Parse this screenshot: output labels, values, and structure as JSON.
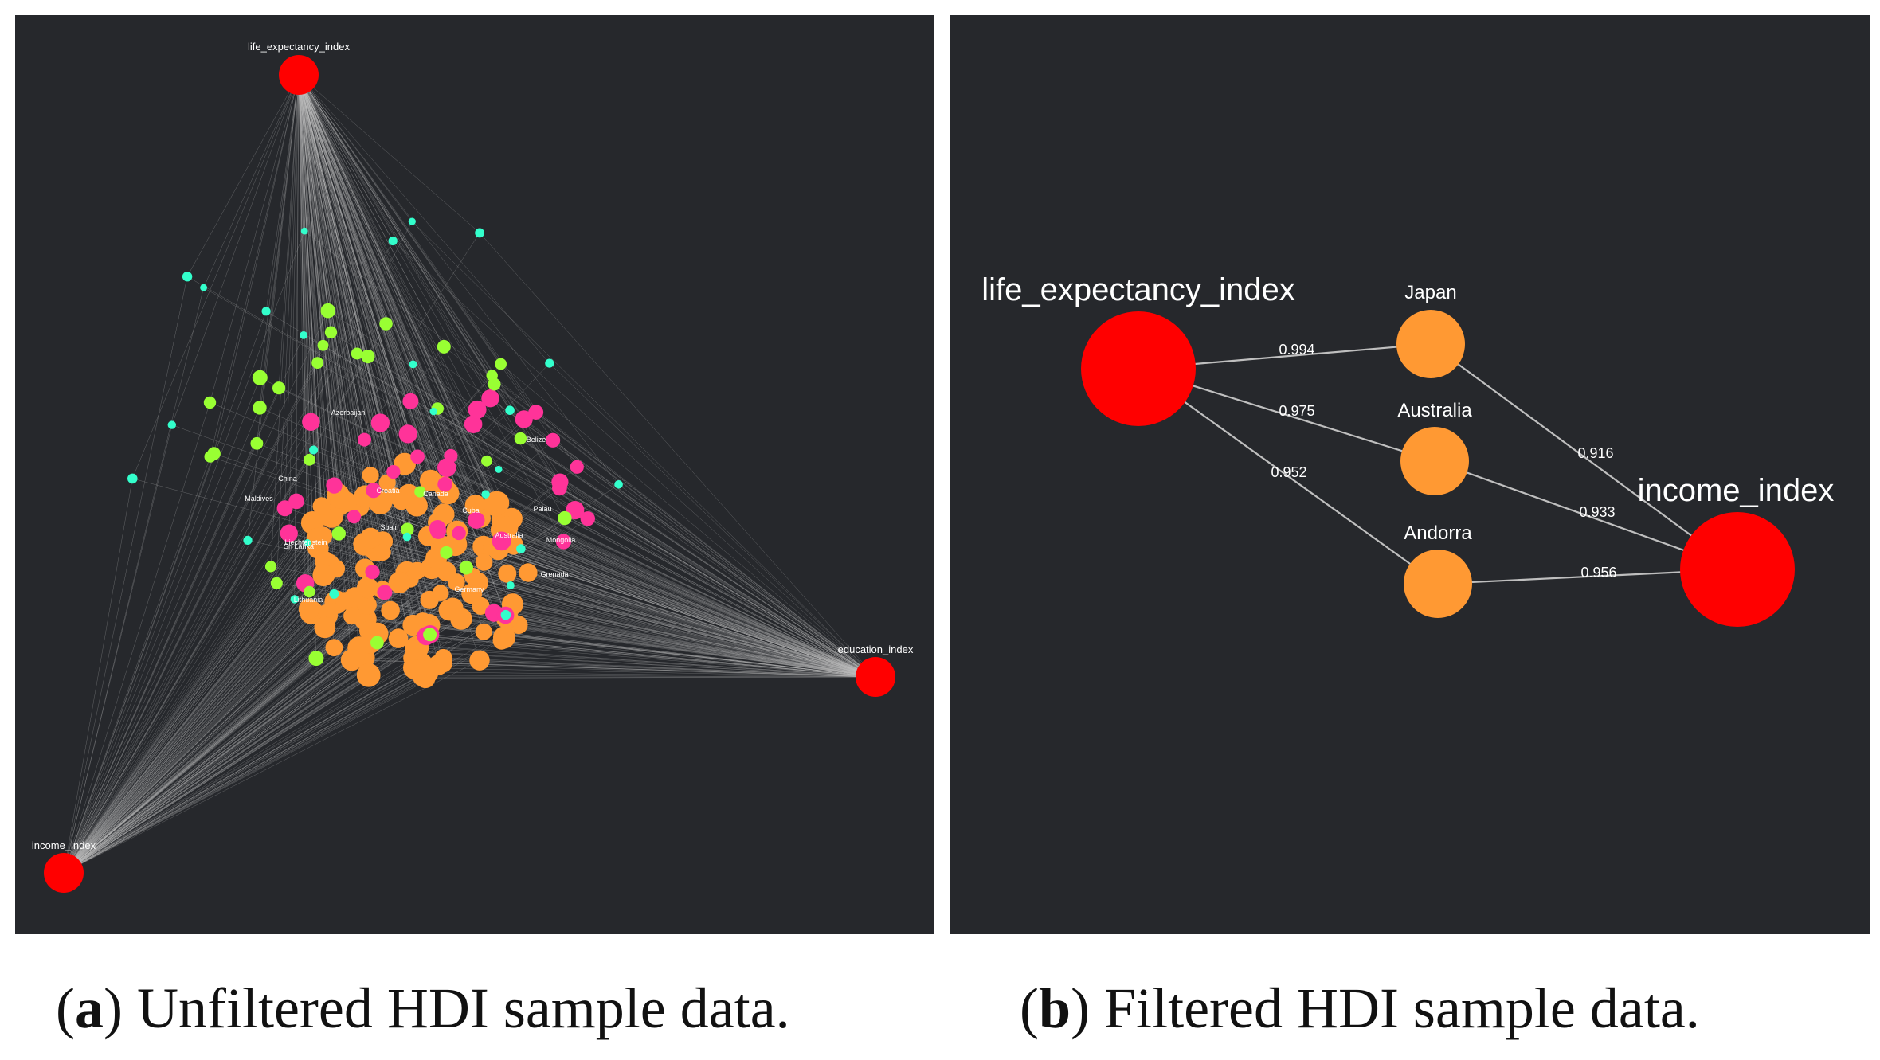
{
  "colors": {
    "background": "#26282c",
    "dimension_node": "#ff0000",
    "edge": "#bfbfbf",
    "label": "#ffffff",
    "cluster_orange": "#ff9933",
    "cluster_pink": "#ff3399",
    "cluster_green": "#99ff33",
    "cluster_cyan": "#33ffcc"
  },
  "panel_a": {
    "dimensions": {
      "life_expectancy": "life_expectancy_index",
      "education": "education_index",
      "income": "income_index"
    },
    "country_labels": [
      "Canada",
      "Spain",
      "Germany",
      "Australia",
      "Liechtenstein",
      "Croatia",
      "Lithuania",
      "Azerbaijan",
      "Mongolia",
      "Cuba",
      "China",
      "Maldives",
      "Sri Lanka",
      "Palau",
      "Belize",
      "Grenada"
    ]
  },
  "panel_b": {
    "dimensions": {
      "life_expectancy": "life_expectancy_index",
      "income": "income_index"
    },
    "countries": [
      {
        "name": "Japan",
        "life_weight": "0.994",
        "income_weight": "0.916"
      },
      {
        "name": "Australia",
        "life_weight": "0.975",
        "income_weight": "0.933"
      },
      {
        "name": "Andorra",
        "life_weight": "0.952",
        "income_weight": "0.956"
      }
    ]
  },
  "captions": {
    "a_letter": "a",
    "a_text": " Unfiltered HDI sample data.",
    "b_letter": "b",
    "b_text": " Filtered HDI sample data."
  }
}
